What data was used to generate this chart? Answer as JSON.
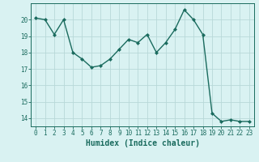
{
  "x": [
    0,
    1,
    2,
    3,
    4,
    5,
    6,
    7,
    8,
    9,
    10,
    11,
    12,
    13,
    14,
    15,
    16,
    17,
    18,
    19,
    20,
    21,
    22,
    23
  ],
  "y": [
    20.1,
    20.0,
    19.1,
    20.0,
    18.0,
    17.6,
    17.1,
    17.2,
    17.6,
    18.2,
    18.8,
    18.6,
    19.1,
    18.0,
    18.6,
    19.4,
    20.6,
    20.0,
    19.1,
    14.3,
    13.8,
    13.9,
    13.8,
    13.8
  ],
  "line_color": "#1a6b5e",
  "marker": "D",
  "markersize": 2.0,
  "linewidth": 1.0,
  "bg_color": "#d9f2f2",
  "grid_color": "#b8d8d8",
  "xlabel": "Humidex (Indice chaleur)",
  "xlim": [
    -0.5,
    23.5
  ],
  "ylim": [
    13.5,
    21.0
  ],
  "yticks": [
    14,
    15,
    16,
    17,
    18,
    19,
    20
  ],
  "xticks": [
    0,
    1,
    2,
    3,
    4,
    5,
    6,
    7,
    8,
    9,
    10,
    11,
    12,
    13,
    14,
    15,
    16,
    17,
    18,
    19,
    20,
    21,
    22,
    23
  ],
  "tick_color": "#1a6b5e",
  "label_color": "#1a6b5e",
  "xlabel_fontsize": 7.0,
  "tick_fontsize": 5.5
}
